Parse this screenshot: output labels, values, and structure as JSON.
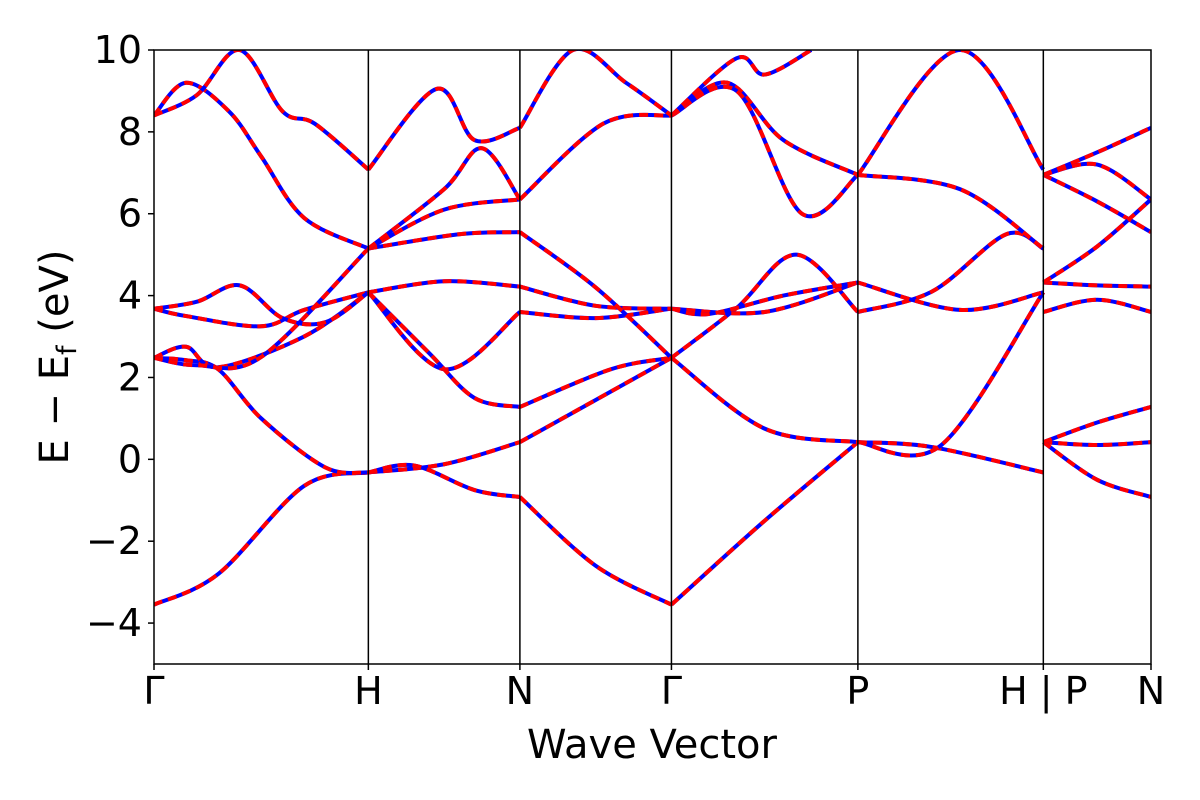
{
  "chart_data": {
    "type": "line",
    "xlabel": "Wave Vector",
    "ylabel": "E − E",
    "ylabel_sub": "f",
    "ylabel_unit": " (eV)",
    "ylim": [
      -5,
      10
    ],
    "yticks": [
      -4,
      -2,
      0,
      2,
      4,
      6,
      8,
      10
    ],
    "ytick_labels": [
      "−4",
      "−2",
      "0",
      "2",
      "4",
      "6",
      "8",
      "10"
    ],
    "xlim": [
      0,
      1
    ],
    "kpoints": [
      {
        "label": "Γ",
        "x": 0.0
      },
      {
        "label": "H",
        "x": 0.215
      },
      {
        "label": "N",
        "x": 0.367
      },
      {
        "label": "Γ",
        "x": 0.519
      },
      {
        "label": "P",
        "x": 0.706
      },
      {
        "label": "H | P",
        "x": 0.892
      },
      {
        "label": "N",
        "x": 1.0
      }
    ],
    "colors": {
      "solid": "#ff0000",
      "dashed": "#0000ff"
    },
    "segments": [
      {
        "from": "Γ",
        "to": "H",
        "x0": 0.0,
        "x1": 0.215,
        "bands": [
          [
            [
              0,
              -3.55
            ],
            [
              0.3,
              -2.8
            ],
            [
              0.7,
              -0.65
            ],
            [
              1,
              -0.32
            ]
          ],
          [
            [
              0,
              2.48
            ],
            [
              0.15,
              2.42
            ],
            [
              0.3,
              2.2
            ],
            [
              0.5,
              1.0
            ],
            [
              0.8,
              -0.2
            ],
            [
              1,
              -0.32
            ]
          ],
          [
            [
              0,
              2.48
            ],
            [
              0.15,
              2.75
            ],
            [
              0.3,
              2.25
            ],
            [
              0.7,
              3.0
            ],
            [
              1,
              4.08
            ]
          ],
          [
            [
              0,
              3.68
            ],
            [
              0.15,
              3.5
            ],
            [
              0.5,
              3.25
            ],
            [
              0.7,
              3.65
            ],
            [
              1,
              4.08
            ]
          ],
          [
            [
              0,
              3.68
            ],
            [
              0.2,
              3.85
            ],
            [
              0.4,
              4.25
            ],
            [
              0.6,
              3.45
            ],
            [
              0.8,
              3.35
            ],
            [
              1,
              4.08
            ]
          ],
          [
            [
              0,
              2.48
            ],
            [
              0.2,
              2.3
            ],
            [
              0.5,
              2.5
            ],
            [
              1,
              5.15
            ]
          ],
          [
            [
              0,
              8.4
            ],
            [
              0.15,
              9.2
            ],
            [
              0.35,
              8.5
            ],
            [
              0.5,
              7.4
            ],
            [
              0.7,
              5.9
            ],
            [
              1,
              5.15
            ]
          ],
          [
            [
              0,
              8.4
            ],
            [
              0.2,
              8.9
            ],
            [
              0.4,
              10.0
            ],
            [
              0.6,
              8.5
            ],
            [
              0.75,
              8.2
            ],
            [
              1,
              7.08
            ]
          ]
        ]
      },
      {
        "from": "H",
        "to": "N",
        "x0": 0.215,
        "x1": 0.367,
        "bands": [
          [
            [
              0,
              -0.32
            ],
            [
              0.5,
              -0.12
            ],
            [
              1,
              0.42
            ]
          ],
          [
            [
              0,
              -0.32
            ],
            [
              0.3,
              -0.15
            ],
            [
              0.7,
              -0.75
            ],
            [
              1,
              -0.92
            ]
          ],
          [
            [
              0,
              4.08
            ],
            [
              0.5,
              2.2
            ],
            [
              1,
              3.6
            ]
          ],
          [
            [
              0,
              4.08
            ],
            [
              0.4,
              2.6
            ],
            [
              0.7,
              1.5
            ],
            [
              1,
              1.28
            ]
          ],
          [
            [
              0,
              4.08
            ],
            [
              0.5,
              4.35
            ],
            [
              1,
              4.22
            ]
          ],
          [
            [
              0,
              5.15
            ],
            [
              0.6,
              5.5
            ],
            [
              1,
              5.55
            ]
          ],
          [
            [
              0,
              5.15
            ],
            [
              0.5,
              6.1
            ],
            [
              1,
              6.35
            ]
          ],
          [
            [
              0,
              5.15
            ],
            [
              0.5,
              6.6
            ],
            [
              0.75,
              7.6
            ],
            [
              1,
              6.35
            ]
          ],
          [
            [
              0,
              7.08
            ],
            [
              0.45,
              9.05
            ],
            [
              0.7,
              7.8
            ],
            [
              1,
              8.1
            ]
          ]
        ]
      },
      {
        "from": "N",
        "to": "Γ",
        "x0": 0.367,
        "x1": 0.519,
        "bands": [
          [
            [
              0,
              -0.92
            ],
            [
              0.5,
              -2.6
            ],
            [
              1,
              -3.55
            ]
          ],
          [
            [
              0,
              0.42
            ],
            [
              0.5,
              1.45
            ],
            [
              1,
              2.48
            ]
          ],
          [
            [
              0,
              1.28
            ],
            [
              0.6,
              2.2
            ],
            [
              1,
              2.48
            ]
          ],
          [
            [
              0,
              3.6
            ],
            [
              0.5,
              3.45
            ],
            [
              1,
              3.68
            ]
          ],
          [
            [
              0,
              4.22
            ],
            [
              0.5,
              3.75
            ],
            [
              1,
              3.68
            ]
          ],
          [
            [
              0,
              5.55
            ],
            [
              0.5,
              4.2
            ],
            [
              1,
              2.48
            ]
          ],
          [
            [
              0,
              6.35
            ],
            [
              0.55,
              8.2
            ],
            [
              1,
              8.4
            ]
          ],
          [
            [
              0,
              8.1
            ],
            [
              0.35,
              10.0
            ],
            [
              0.7,
              9.2
            ],
            [
              1,
              8.4
            ]
          ]
        ]
      },
      {
        "from": "Γ",
        "to": "P",
        "x0": 0.519,
        "x1": 0.706,
        "bands": [
          [
            [
              0,
              -3.55
            ],
            [
              0.5,
              -1.5
            ],
            [
              1,
              0.42
            ]
          ],
          [
            [
              0,
              2.48
            ],
            [
              0.5,
              0.75
            ],
            [
              1,
              0.42
            ]
          ],
          [
            [
              0,
              2.48
            ],
            [
              0.35,
              3.7
            ],
            [
              0.67,
              5.0
            ],
            [
              1,
              3.6
            ]
          ],
          [
            [
              0,
              3.68
            ],
            [
              0.5,
              3.6
            ],
            [
              1,
              4.32
            ]
          ],
          [
            [
              0,
              3.68
            ],
            [
              0.2,
              3.55
            ],
            [
              0.6,
              4.0
            ],
            [
              1,
              4.32
            ]
          ],
          [
            [
              0,
              8.4
            ],
            [
              0.3,
              9.2
            ],
            [
              0.6,
              7.8
            ],
            [
              1,
              6.95
            ]
          ],
          [
            [
              0,
              8.4
            ],
            [
              0.35,
              9.0
            ],
            [
              0.7,
              6.0
            ],
            [
              1,
              6.95
            ]
          ],
          [
            [
              0,
              8.4
            ],
            [
              0.35,
              9.8
            ],
            [
              0.5,
              9.4
            ],
            [
              0.75,
              10.0
            ]
          ]
        ]
      },
      {
        "from": "P",
        "to": "H",
        "x0": 0.706,
        "x1": 0.892,
        "bands": [
          [
            [
              0,
              0.42
            ],
            [
              0.4,
              0.3
            ],
            [
              1,
              -0.32
            ]
          ],
          [
            [
              0,
              0.42
            ],
            [
              0.45,
              0.35
            ],
            [
              1,
              4.08
            ]
          ],
          [
            [
              0,
              3.6
            ],
            [
              0.4,
              4.1
            ],
            [
              0.8,
              5.5
            ],
            [
              1,
              5.15
            ]
          ],
          [
            [
              0,
              4.32
            ],
            [
              0.55,
              3.65
            ],
            [
              1,
              4.08
            ]
          ],
          [
            [
              0,
              6.95
            ],
            [
              0.55,
              6.6
            ],
            [
              1,
              5.15
            ]
          ],
          [
            [
              0,
              6.95
            ],
            [
              0.55,
              10.0
            ],
            [
              1,
              7.08
            ]
          ]
        ]
      },
      {
        "from": "P",
        "to": "N",
        "x0": 0.892,
        "x1": 1.0,
        "bands": [
          [
            [
              0,
              0.42
            ],
            [
              0.5,
              0.35
            ],
            [
              1,
              0.42
            ]
          ],
          [
            [
              0,
              0.42
            ],
            [
              0.5,
              -0.5
            ],
            [
              1,
              -0.92
            ]
          ],
          [
            [
              0,
              0.42
            ],
            [
              0.5,
              0.9
            ],
            [
              1,
              1.28
            ]
          ],
          [
            [
              0,
              3.6
            ],
            [
              0.5,
              3.9
            ],
            [
              1,
              3.6
            ]
          ],
          [
            [
              0,
              4.32
            ],
            [
              0.5,
              4.25
            ],
            [
              1,
              4.22
            ]
          ],
          [
            [
              0,
              6.95
            ],
            [
              0.5,
              6.3
            ],
            [
              1,
              5.55
            ]
          ],
          [
            [
              0,
              6.95
            ],
            [
              0.5,
              7.2
            ],
            [
              1,
              6.35
            ]
          ],
          [
            [
              0,
              4.32
            ],
            [
              0.5,
              5.2
            ],
            [
              1,
              6.35
            ]
          ],
          [
            [
              0,
              6.95
            ],
            [
              0.5,
              7.5
            ],
            [
              1,
              8.1
            ]
          ]
        ]
      }
    ]
  }
}
